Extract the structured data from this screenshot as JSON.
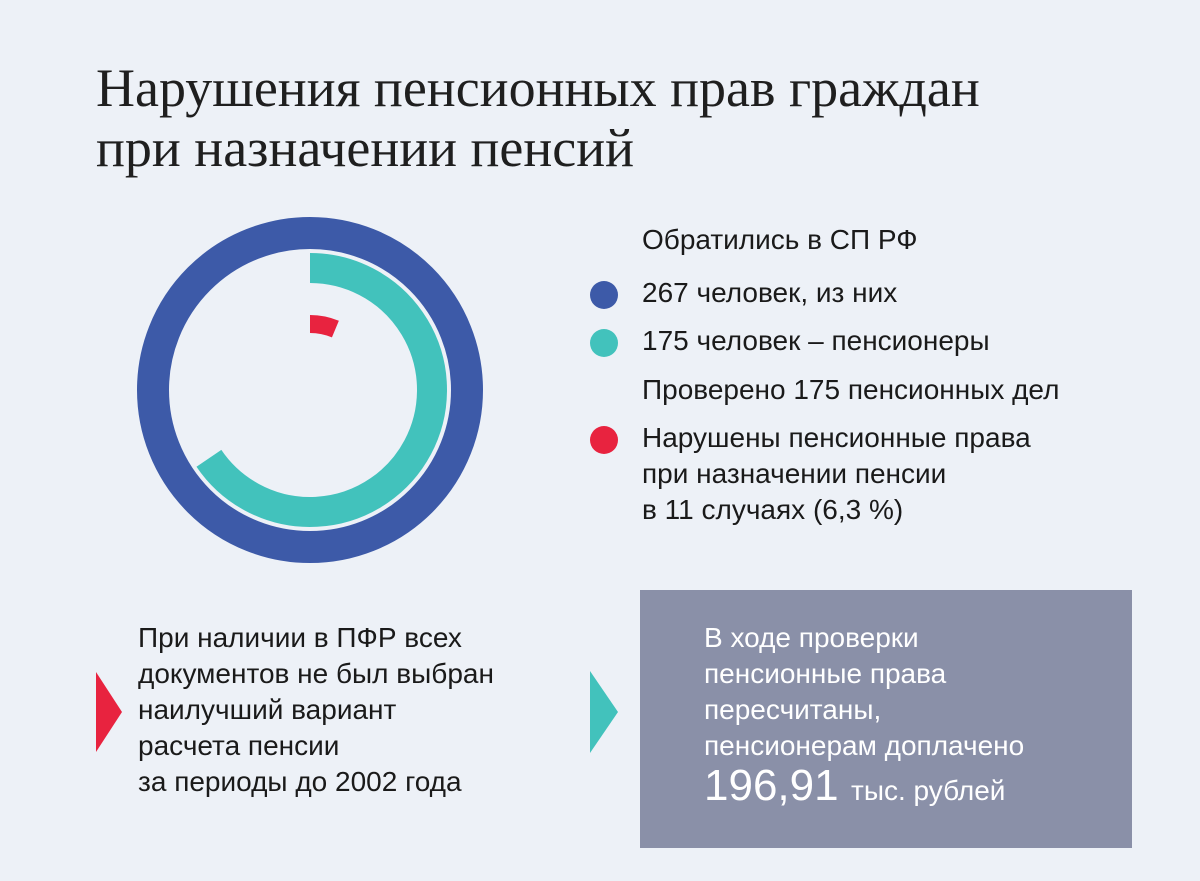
{
  "title": {
    "line1": "Нарушения пенсионных прав граждан",
    "line2": "при назначении пенсий"
  },
  "legend": {
    "heading": "Обратились в СП РФ",
    "total": "267 человек, из них",
    "pensioners": "175 человек – пенсионеры",
    "checked": "Проверено 175 пенсионных дел",
    "violations": [
      "Нарушены пенсионные права",
      "при назначении пенсии",
      "в 11 случаях (6,3 %)"
    ]
  },
  "colors": {
    "total": "#3d5aa8",
    "pensioners": "#42c2bc",
    "violations": "#e8233f",
    "background": "#edf1f7",
    "box": "#8a90a8"
  },
  "chart_data": {
    "type": "donut",
    "series": [
      {
        "name": "267 человек, из них",
        "value": 267
      },
      {
        "name": "175 человек – пенсионеры",
        "value": 175
      },
      {
        "name": "Нарушены пенсионные права при назначении пенсии в 11 случаях (6,3 %)",
        "value": 11
      }
    ],
    "start": "top",
    "direction": "clockwise"
  },
  "note_left": {
    "lines": [
      "При наличии в ПФР всех",
      "документов не был выбран",
      "наилучший вариант",
      "расчета пенсии",
      "за периоды до 2002 года"
    ]
  },
  "result": {
    "lines": [
      "В ходе проверки",
      "пенсионные права",
      "пересчитаны,",
      "пенсионерам доплачено"
    ],
    "amount": "196,91",
    "unit": "тыс. рублей"
  }
}
